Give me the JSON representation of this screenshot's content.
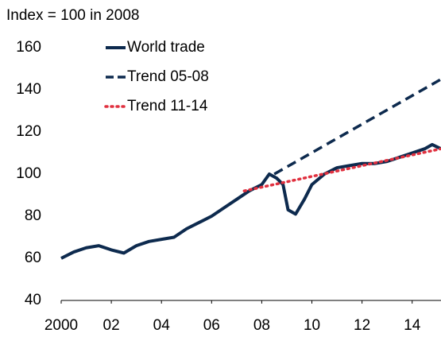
{
  "chart_data": {
    "type": "line",
    "subtitle": "Index = 100 in 2008",
    "xlim": [
      2000,
      2015.15
    ],
    "xticks": [
      2000,
      {
        "value": 2002,
        "label": "02"
      },
      {
        "value": 2004,
        "label": "04"
      },
      {
        "value": 2006,
        "label": "06"
      },
      {
        "value": 2008,
        "label": "08"
      },
      {
        "value": 2010,
        "label": "10"
      },
      {
        "value": 2012,
        "label": "12"
      },
      {
        "value": 2014,
        "label": "14"
      }
    ],
    "ylim": [
      40,
      160
    ],
    "yticks": [
      40,
      60,
      80,
      100,
      120,
      140,
      160
    ],
    "grid": false,
    "legend": "top-left",
    "series": [
      {
        "name": "World trade",
        "color": "#0d2a4e",
        "style": "solid",
        "x": [
          2000,
          2000.5,
          2001,
          2001.5,
          2002,
          2002.5,
          2003,
          2003.5,
          2004,
          2004.5,
          2005,
          2005.5,
          2006,
          2006.5,
          2007,
          2007.5,
          2008,
          2008.3,
          2008.6,
          2008.85,
          2009.05,
          2009.35,
          2009.7,
          2010,
          2010.5,
          2011,
          2011.5,
          2012,
          2012.5,
          2013,
          2013.5,
          2014,
          2014.5,
          2014.8,
          2015.15
        ],
        "values": [
          60,
          63,
          65,
          66,
          64,
          62.5,
          66,
          68,
          69,
          70,
          74,
          77,
          80,
          84,
          88,
          92,
          95,
          100,
          98,
          95,
          83,
          81,
          88,
          95,
          100,
          103,
          104,
          105,
          105,
          106,
          108,
          110,
          112,
          114,
          112
        ]
      },
      {
        "name": "Trend 05-08",
        "color": "#0d2a4e",
        "style": "dashed",
        "x": [
          2008.5,
          2015.15
        ],
        "values": [
          100,
          145
        ]
      },
      {
        "name": "Trend 11-14",
        "color": "#e0303f",
        "style": "dotted",
        "x": [
          2007.3,
          2015.15
        ],
        "values": [
          92,
          112
        ]
      }
    ]
  }
}
